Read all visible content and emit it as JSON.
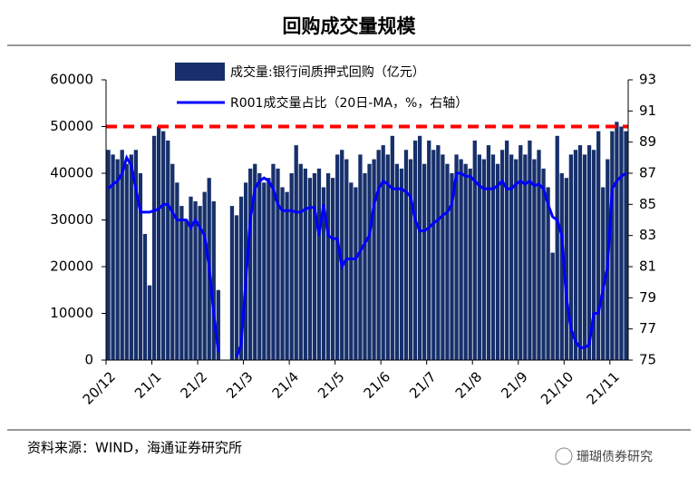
{
  "chart_data": {
    "type": "bar_line",
    "title": "回购成交量规模",
    "source": "资料来源：WIND，海通证券研究所",
    "watermark": "珊瑚债券研究",
    "categories": [
      "20/12",
      null,
      null,
      null,
      null,
      null,
      null,
      null,
      null,
      null,
      "21/1",
      null,
      null,
      null,
      null,
      null,
      null,
      null,
      null,
      null,
      "21/2",
      null,
      null,
      null,
      null,
      null,
      null,
      null,
      null,
      null,
      "21/3",
      null,
      null,
      null,
      null,
      null,
      null,
      null,
      null,
      null,
      "21/4",
      null,
      null,
      null,
      null,
      null,
      null,
      null,
      null,
      null,
      "21/5",
      null,
      null,
      null,
      null,
      null,
      null,
      null,
      null,
      null,
      "21/6",
      null,
      null,
      null,
      null,
      null,
      null,
      null,
      null,
      null,
      "21/7",
      null,
      null,
      null,
      null,
      null,
      null,
      null,
      null,
      null,
      "21/8",
      null,
      null,
      null,
      null,
      null,
      null,
      null,
      null,
      null,
      "21/9",
      null,
      null,
      null,
      null,
      null,
      null,
      null,
      null,
      null,
      "21/10",
      null,
      null,
      null,
      null,
      null,
      null,
      null,
      null,
      null,
      "21/11",
      null,
      null,
      null
    ],
    "series": [
      {
        "name": "成交量:银行间质押式回购（亿元）",
        "kind": "bar",
        "color": "#17306b",
        "values": [
          45000,
          44000,
          43000,
          45000,
          42000,
          44000,
          45000,
          40000,
          27000,
          16000,
          48000,
          50000,
          49000,
          47000,
          42000,
          38000,
          33000,
          30000,
          35000,
          34000,
          33000,
          36000,
          39000,
          34000,
          15000,
          null,
          null,
          33000,
          31000,
          35000,
          38000,
          41000,
          42000,
          40000,
          38000,
          39000,
          42000,
          41000,
          37000,
          36000,
          40000,
          46000,
          42000,
          41000,
          39000,
          40000,
          41000,
          37000,
          40000,
          39000,
          44000,
          45000,
          43000,
          38000,
          37000,
          44000,
          40000,
          42000,
          43000,
          45000,
          46000,
          44000,
          48000,
          42000,
          41000,
          45000,
          43000,
          47000,
          48000,
          42000,
          47000,
          45000,
          46000,
          44000,
          42000,
          40000,
          44000,
          43000,
          42000,
          41000,
          47000,
          44000,
          43000,
          46000,
          44000,
          42000,
          45000,
          47000,
          44000,
          43000,
          46000,
          44000,
          47000,
          43000,
          45000,
          41000,
          37000,
          23000,
          48000,
          40000,
          39000,
          44000,
          45000,
          46000,
          44000,
          46000,
          45000,
          49000,
          37000,
          43000,
          49000,
          51000,
          50000,
          49000
        ]
      },
      {
        "name": "R001成交量占比（20日-MA，%，右轴）",
        "kind": "line",
        "axis": "y2",
        "color": "#0000ff",
        "values": [
          86,
          86.3,
          86.5,
          87,
          88,
          87.5,
          86,
          84.5,
          84.5,
          84.5,
          84.6,
          84.7,
          85,
          85,
          84.5,
          84,
          84,
          84,
          83.5,
          84,
          83.5,
          83,
          81,
          78,
          75.5,
          null,
          null,
          null,
          75.2,
          76,
          80,
          84,
          86,
          86.5,
          86.7,
          86.5,
          86,
          85,
          84.6,
          84.6,
          84.6,
          84.5,
          84.5,
          84.7,
          84.8,
          84.8,
          83,
          85,
          83,
          82.8,
          82.8,
          81,
          81.5,
          81.5,
          81.5,
          82,
          82.5,
          83,
          85,
          86,
          86.5,
          86.3,
          86,
          86,
          86,
          85.8,
          85.5,
          84,
          83.3,
          83.3,
          83.5,
          83.8,
          84,
          84.3,
          84.5,
          85,
          87,
          87,
          86.8,
          86.8,
          86.5,
          86.2,
          86,
          86,
          86,
          86.2,
          86.5,
          86,
          86,
          86.3,
          86.5,
          86.3,
          86.5,
          86.2,
          86.3,
          86,
          85,
          84.2,
          84,
          83,
          79,
          77,
          76.2,
          75.8,
          75.8,
          76,
          78,
          78,
          79.5,
          81,
          86,
          86.5,
          86.8,
          87
        ]
      }
    ],
    "reference_lines": [
      {
        "value": 50000,
        "color": "#ff0000"
      }
    ],
    "ylim": [
      0,
      60000
    ],
    "yticks": [
      0,
      10000,
      20000,
      30000,
      40000,
      50000,
      60000
    ],
    "y2lim": [
      75,
      93
    ],
    "y2ticks": [
      75,
      77,
      79,
      81,
      83,
      85,
      87,
      89,
      91,
      93
    ]
  }
}
